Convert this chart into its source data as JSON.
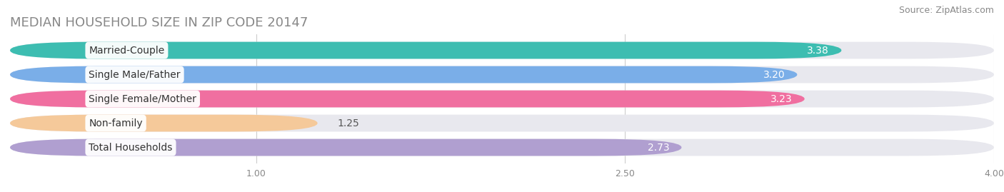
{
  "title": "MEDIAN HOUSEHOLD SIZE IN ZIP CODE 20147",
  "source": "Source: ZipAtlas.com",
  "categories": [
    "Married-Couple",
    "Single Male/Father",
    "Single Female/Mother",
    "Non-family",
    "Total Households"
  ],
  "values": [
    3.38,
    3.2,
    3.23,
    1.25,
    2.73
  ],
  "bar_colors": [
    "#3dbdb1",
    "#7aaee8",
    "#f06fa0",
    "#f5c99a",
    "#b09fd0"
  ],
  "xlim": [
    0,
    4.0
  ],
  "xticks": [
    1.0,
    2.5,
    4.0
  ],
  "title_fontsize": 13,
  "source_fontsize": 9,
  "label_fontsize": 10,
  "value_fontsize": 10,
  "bg_color": "#ffffff",
  "bar_bg_color": "#e8e8ee"
}
